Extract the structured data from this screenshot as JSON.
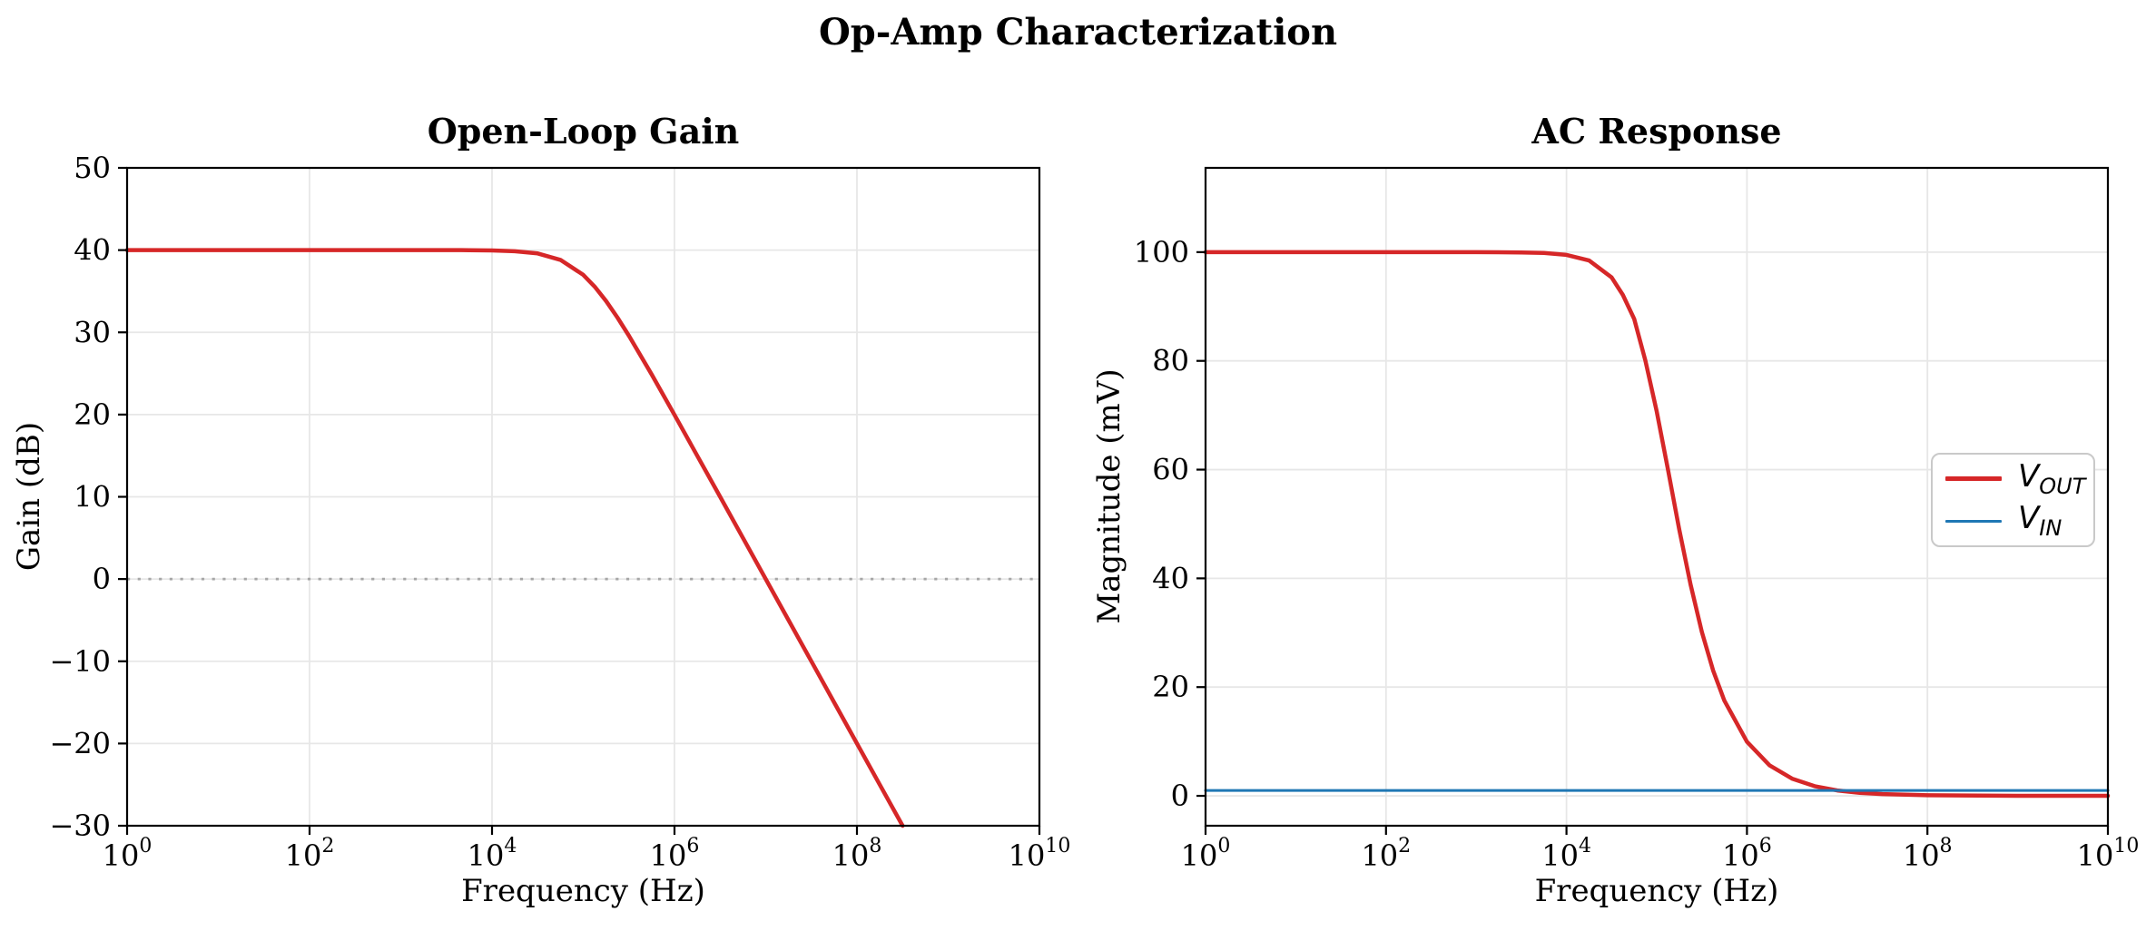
{
  "figure": {
    "title": "Op-Amp Characterization"
  },
  "chart_data": [
    {
      "type": "line",
      "title": "Open-Loop Gain",
      "xlabel": "Frequency (Hz)",
      "ylabel": "Gain (dB)",
      "xscale": "log",
      "xlim_exponents": [
        0,
        10
      ],
      "ylim": [
        -30,
        50
      ],
      "xtick_exponents": [
        0,
        2,
        4,
        6,
        8,
        10
      ],
      "yticks": [
        -30,
        -20,
        -10,
        0,
        10,
        20,
        30,
        40,
        50
      ],
      "grid": true,
      "legend_shown": false,
      "reference_line": {
        "y": 0,
        "style": "dotted",
        "color": "#a6a6a6"
      },
      "series": [
        {
          "name": "open-loop-gain",
          "color": "#d62728",
          "line_width": 4.5,
          "points_log10x": [
            [
              0,
              40
            ],
            [
              1,
              40
            ],
            [
              2,
              40
            ],
            [
              3,
              40
            ],
            [
              3.5,
              40
            ],
            [
              3.75,
              39.99
            ],
            [
              4,
              39.96
            ],
            [
              4.25,
              39.86
            ],
            [
              4.5,
              39.59
            ],
            [
              4.75,
              38.81
            ],
            [
              5,
              36.99
            ],
            [
              5.125,
              35.56
            ],
            [
              5.25,
              33.81
            ],
            [
              5.375,
              31.79
            ],
            [
              5.5,
              29.59
            ],
            [
              5.75,
              24.87
            ],
            [
              6,
              19.96
            ],
            [
              6.25,
              14.99
            ],
            [
              6.5,
              10
            ],
            [
              6.75,
              5
            ],
            [
              7,
              0
            ],
            [
              7.25,
              -5
            ],
            [
              7.5,
              -10
            ],
            [
              7.75,
              -15
            ],
            [
              8,
              -20
            ],
            [
              8.25,
              -25
            ],
            [
              8.5,
              -30
            ]
          ]
        }
      ]
    },
    {
      "type": "line",
      "title": "AC Response",
      "xlabel": "Frequency (Hz)",
      "ylabel": "Magnitude (mV)",
      "xscale": "log",
      "xlim_exponents": [
        0,
        10
      ],
      "ylim": [
        -5.5,
        115.5
      ],
      "xtick_exponents": [
        0,
        2,
        4,
        6,
        8,
        10
      ],
      "yticks": [
        0,
        20,
        40,
        60,
        80,
        100
      ],
      "grid": true,
      "legend_shown": true,
      "series": [
        {
          "name": "v-out",
          "color": "#d62728",
          "line_width": 4.5,
          "points_log10x": [
            [
              0,
              100
            ],
            [
              1,
              100
            ],
            [
              2,
              100
            ],
            [
              3,
              100
            ],
            [
              3.5,
              99.95
            ],
            [
              3.75,
              99.84
            ],
            [
              4,
              99.5
            ],
            [
              4.25,
              98.46
            ],
            [
              4.5,
              95.35
            ],
            [
              4.625,
              92.14
            ],
            [
              4.75,
              87.72
            ],
            [
              4.875,
              80
            ],
            [
              5,
              70.71
            ],
            [
              5.125,
              60
            ],
            [
              5.25,
              49.01
            ],
            [
              5.375,
              38.86
            ],
            [
              5.5,
              30.15
            ],
            [
              5.625,
              23.07
            ],
            [
              5.75,
              17.51
            ],
            [
              6,
              9.95
            ],
            [
              6.25,
              5.61
            ],
            [
              6.5,
              3.16
            ],
            [
              6.75,
              1.78
            ],
            [
              7,
              1
            ],
            [
              7.25,
              0.56
            ],
            [
              7.5,
              0.32
            ],
            [
              8,
              0.1
            ],
            [
              9,
              0.01
            ],
            [
              10,
              0
            ]
          ]
        },
        {
          "name": "v-in",
          "color": "#1f77b4",
          "line_width": 3,
          "points_log10x": [
            [
              0,
              1
            ],
            [
              10,
              1
            ]
          ]
        }
      ],
      "legend": {
        "position": "center right",
        "entries": [
          {
            "main": "V",
            "sub": "OUT",
            "color": "#d62728",
            "line_width": 5
          },
          {
            "main": "V",
            "sub": "IN",
            "color": "#1f77b4",
            "line_width": 3.5
          }
        ]
      }
    }
  ],
  "style_colors": {
    "series_red": "#d62728",
    "series_blue": "#1f77b4",
    "grid": "#e7e7e7",
    "spine": "#000000",
    "reference_line": "#a6a6a6"
  }
}
